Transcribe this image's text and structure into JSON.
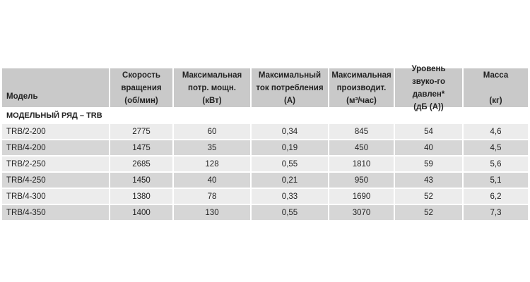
{
  "headers": [
    "Модель",
    "Скорость\nвращения\n(об/мин)",
    "Максимальная\nпотр. мощн.\n(кВт)",
    "Максимальный\nток потребления\n(А)",
    "Максимальная\nпроизводит.\n(м³/час)",
    "Уровень\nзвуко-го давлен*\n(дБ (А))",
    "Масса\n\n(кг)"
  ],
  "section": "МОДЕЛЬНЫЙ РЯД – TRB",
  "rows": [
    [
      "TRB/2-200",
      "2775",
      "60",
      "0,34",
      "845",
      "54",
      "4,6"
    ],
    [
      "TRB/4-200",
      "1475",
      "35",
      "0,19",
      "450",
      "40",
      "4,5"
    ],
    [
      "TRB/2-250",
      "2685",
      "128",
      "0,55",
      "1810",
      "59",
      "5,6"
    ],
    [
      "TRB/4-250",
      "1450",
      "40",
      "0,21",
      "950",
      "43",
      "5,1"
    ],
    [
      "TRB/4-300",
      "1380",
      "78",
      "0,33",
      "1690",
      "52",
      "6,2"
    ],
    [
      "TRB/4-350",
      "1400",
      "130",
      "0,55",
      "3070",
      "52",
      "7,3"
    ]
  ]
}
